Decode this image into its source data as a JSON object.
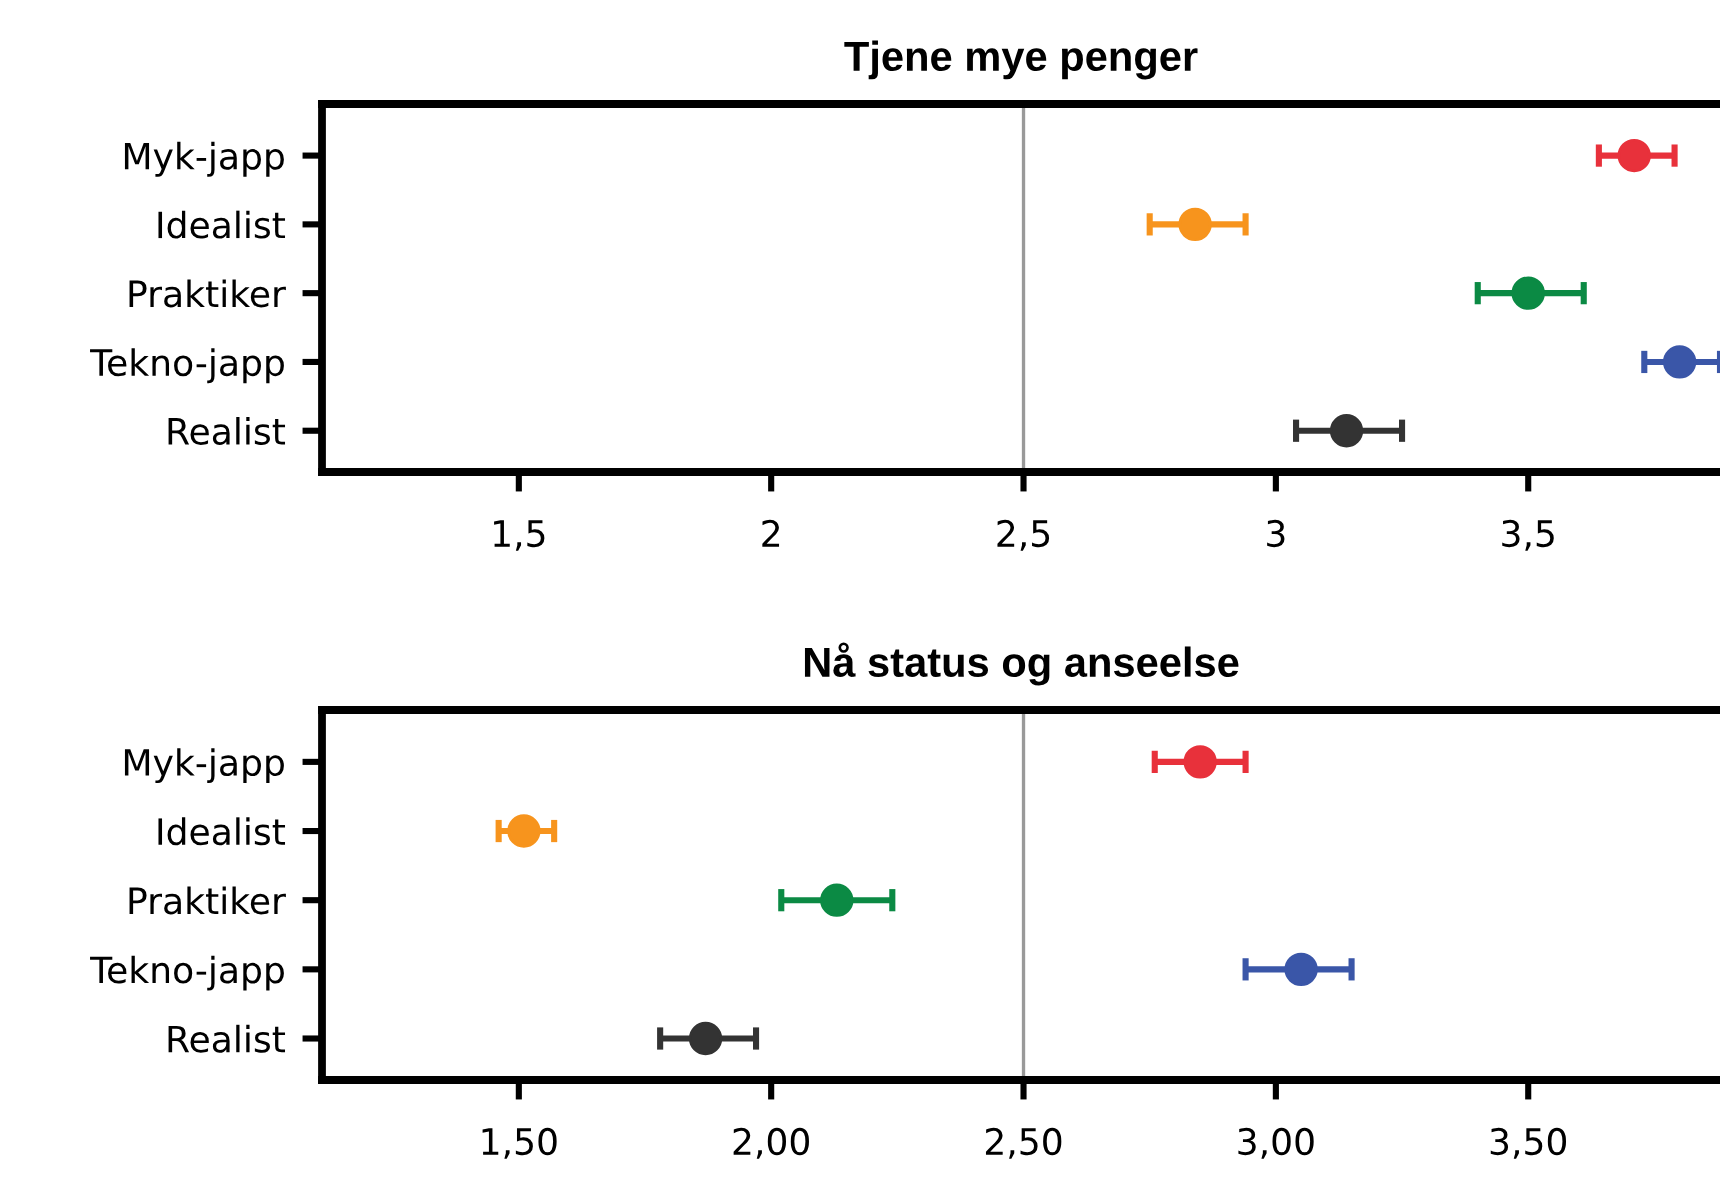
{
  "chart_data": [
    {
      "type": "scatter",
      "orientation": "horizontal",
      "title": "Tjene mye penger",
      "categories": [
        "Myk-japp",
        "Idealist",
        "Praktiker",
        "Tekno-japp",
        "Realist"
      ],
      "values": [
        3.71,
        2.84,
        3.5,
        3.8,
        3.14
      ],
      "errors": [
        [
          3.64,
          3.79
        ],
        [
          2.75,
          2.94
        ],
        [
          3.4,
          3.61
        ],
        [
          3.73,
          3.88
        ],
        [
          3.04,
          3.25
        ]
      ],
      "colors": [
        "#e8313b",
        "#f7941d",
        "#0b8a44",
        "#3a56a8",
        "#333333"
      ],
      "marker": "circle",
      "xlim": [
        1.11,
        3.88
      ],
      "xticks": [
        {
          "value": 1.5,
          "label": "1,5"
        },
        {
          "value": 2,
          "label": "2"
        },
        {
          "value": 2.5,
          "label": "2,5"
        },
        {
          "value": 3,
          "label": "3"
        },
        {
          "value": 3.5,
          "label": "3,5"
        }
      ],
      "ref_lines": [
        {
          "axis": "x",
          "value": 2.5,
          "color": "#999999"
        }
      ],
      "grid": false,
      "legend": false
    },
    {
      "type": "scatter",
      "orientation": "horizontal",
      "title": "Nå status og anseelse",
      "categories": [
        "Myk-japp",
        "Idealist",
        "Praktiker",
        "Tekno-japp",
        "Realist"
      ],
      "values": [
        2.85,
        1.51,
        2.13,
        3.05,
        1.87
      ],
      "errors": [
        [
          2.76,
          2.94
        ],
        [
          1.46,
          1.57
        ],
        [
          2.02,
          2.24
        ],
        [
          2.94,
          3.15
        ],
        [
          1.78,
          1.97
        ]
      ],
      "colors": [
        "#e8313b",
        "#f7941d",
        "#0b8a44",
        "#3a56a8",
        "#333333"
      ],
      "marker": "circle",
      "xlim": [
        1.11,
        3.88
      ],
      "xticks": [
        {
          "value": 1.5,
          "label": "1,50"
        },
        {
          "value": 2,
          "label": "2,00"
        },
        {
          "value": 2.5,
          "label": "2,50"
        },
        {
          "value": 3,
          "label": "3,00"
        },
        {
          "value": 3.5,
          "label": "3,50"
        }
      ],
      "ref_lines": [
        {
          "axis": "x",
          "value": 2.5,
          "color": "#999999"
        }
      ],
      "grid": false,
      "legend": false
    }
  ]
}
